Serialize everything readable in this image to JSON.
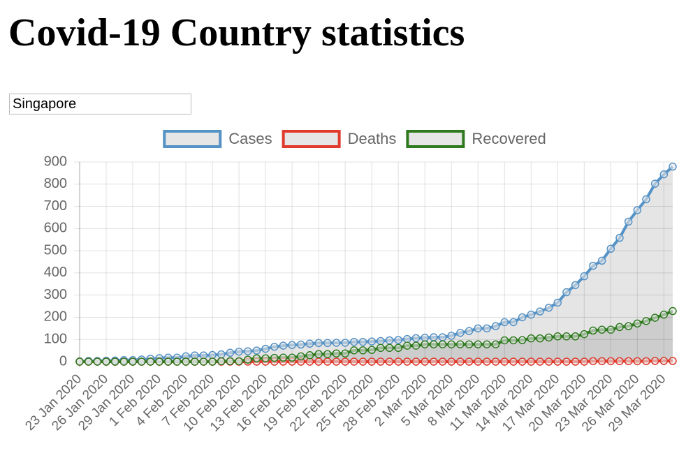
{
  "page": {
    "title": "Covid-19 Country statistics",
    "country_input": "Singapore"
  },
  "chart_data": {
    "type": "line",
    "categories": [
      "23 Jan 2020",
      null,
      null,
      "26 Jan 2020",
      null,
      null,
      "29 Jan 2020",
      null,
      null,
      "1 Feb 2020",
      null,
      null,
      "4 Feb 2020",
      null,
      null,
      "7 Feb 2020",
      null,
      null,
      "10 Feb 2020",
      null,
      null,
      "13 Feb 2020",
      null,
      null,
      "16 Feb 2020",
      null,
      null,
      "19 Feb 2020",
      null,
      null,
      "22 Feb 2020",
      null,
      null,
      "25 Feb 2020",
      null,
      null,
      "28 Feb 2020",
      null,
      null,
      "2 Mar 2020",
      null,
      null,
      "5 Mar 2020",
      null,
      null,
      "8 Mar 2020",
      null,
      null,
      "11 Mar 2020",
      null,
      null,
      "14 Mar 2020",
      null,
      null,
      "17 Mar 2020",
      null,
      null,
      "20 Mar 2020",
      null,
      null,
      "23 Mar 2020",
      null,
      null,
      "26 Mar 2020",
      null,
      null,
      "29 Mar 2020",
      null
    ],
    "series": [
      {
        "name": "Cases",
        "color": "#5592c6",
        "values": [
          1,
          3,
          3,
          4,
          5,
          7,
          7,
          10,
          13,
          16,
          18,
          18,
          24,
          28,
          28,
          30,
          33,
          40,
          45,
          47,
          50,
          58,
          67,
          72,
          75,
          77,
          81,
          84,
          84,
          85,
          85,
          89,
          89,
          91,
          93,
          96,
          98,
          102,
          106,
          108,
          110,
          110,
          117,
          130,
          138,
          150,
          150,
          160,
          178,
          178,
          200,
          212,
          226,
          243,
          266,
          313,
          345,
          385,
          432,
          455,
          509,
          558,
          631,
          683,
          732,
          802,
          844,
          879
        ]
      },
      {
        "name": "Deaths",
        "color": "#e03a2c",
        "values": [
          0,
          0,
          0,
          0,
          0,
          0,
          0,
          0,
          0,
          0,
          0,
          0,
          0,
          0,
          0,
          0,
          0,
          0,
          0,
          0,
          0,
          0,
          0,
          0,
          0,
          0,
          0,
          0,
          0,
          0,
          0,
          0,
          0,
          0,
          0,
          0,
          0,
          0,
          0,
          0,
          0,
          0,
          0,
          0,
          0,
          0,
          0,
          0,
          0,
          0,
          0,
          0,
          0,
          0,
          0,
          0,
          0,
          0,
          2,
          2,
          2,
          2,
          2,
          2,
          2,
          3,
          3,
          3
        ]
      },
      {
        "name": "Recovered",
        "color": "#2f7a1f",
        "values": [
          0,
          0,
          0,
          0,
          0,
          0,
          0,
          0,
          0,
          0,
          0,
          0,
          0,
          0,
          0,
          0,
          2,
          2,
          2,
          9,
          15,
          15,
          17,
          18,
          18,
          24,
          29,
          34,
          34,
          37,
          37,
          51,
          51,
          53,
          62,
          62,
          62,
          72,
          72,
          78,
          78,
          78,
          78,
          78,
          78,
          78,
          78,
          78,
          96,
          96,
          97,
          105,
          105,
          109,
          114,
          114,
          114,
          124,
          140,
          144,
          144,
          156,
          160,
          172,
          183,
          198,
          212,
          228
        ]
      }
    ],
    "ylim": [
      0,
      900
    ],
    "yticks": [
      0,
      100,
      200,
      300,
      400,
      500,
      600,
      700,
      800,
      900
    ],
    "grid": true,
    "fill": true,
    "legend": "top"
  }
}
